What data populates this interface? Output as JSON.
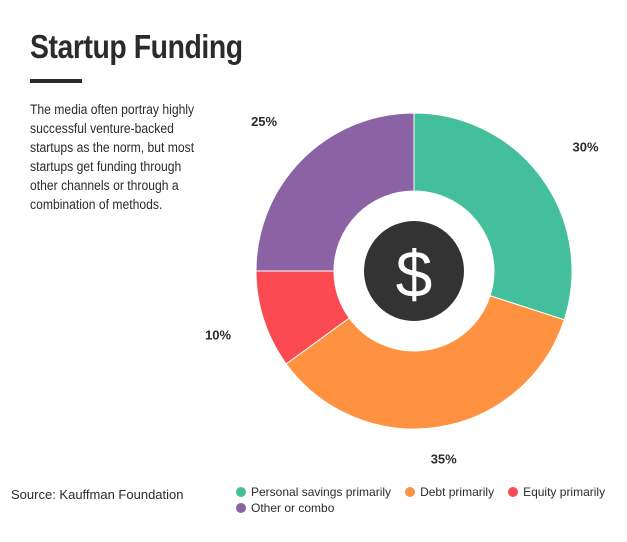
{
  "header": {
    "title": "Startup Funding",
    "description": "The media often portray highly successful venture-backed startups as the norm, but most startups get funding through other channels or through a combination of methods."
  },
  "footer": {
    "source": "Source: Kauffman Foundation"
  },
  "center_icon": {
    "name": "dollar-icon",
    "glyph": "$",
    "color": "#333333"
  },
  "chart_data": {
    "type": "pie",
    "donut": true,
    "title": "Startup Funding",
    "legend_position": "bottom",
    "categories": [
      "Personal savings primarily",
      "Debt primarily",
      "Equity primarily",
      "Other or combo"
    ],
    "values": [
      30,
      35,
      10,
      25
    ],
    "labels": [
      "30%",
      "35%",
      "10%",
      "25%"
    ],
    "colors": [
      "#44bf9c",
      "#ff9241",
      "#fb4a51",
      "#8b62a4"
    ]
  }
}
